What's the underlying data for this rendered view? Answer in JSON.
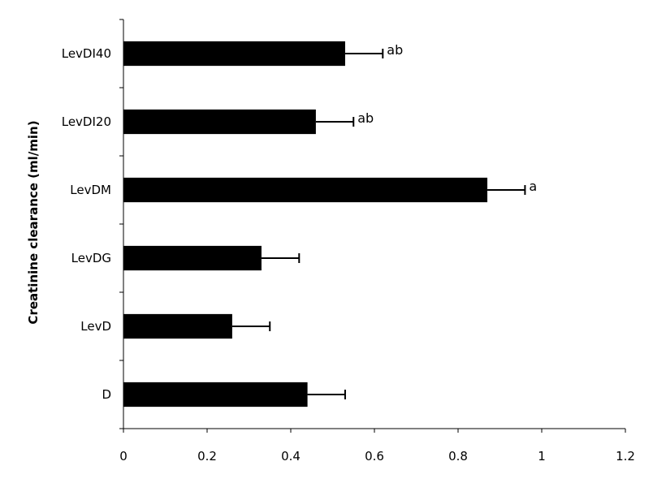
{
  "chart_data": {
    "type": "bar",
    "orientation": "horizontal",
    "categories": [
      "LevDI40",
      "LevDI20",
      "LevDM",
      "LevDG",
      "LevD",
      "D"
    ],
    "values": [
      0.53,
      0.46,
      0.87,
      0.33,
      0.26,
      0.44
    ],
    "errors": [
      0.09,
      0.09,
      0.09,
      0.09,
      0.09,
      0.09
    ],
    "annotations": [
      "ab",
      "ab",
      "a",
      "",
      "",
      ""
    ],
    "ylabel": "Creatinine clearance (ml/min)",
    "xlabel": "",
    "xlim": [
      0,
      1.2
    ],
    "x_ticks": [
      "0",
      "0.2",
      "0.4",
      "0.6",
      "0.8",
      "1",
      "1.2"
    ],
    "x_tick_values": [
      0,
      0.2,
      0.4,
      0.6,
      0.8,
      1,
      1.2
    ],
    "bar_color": "#000000",
    "grid": false,
    "legend": "none"
  }
}
